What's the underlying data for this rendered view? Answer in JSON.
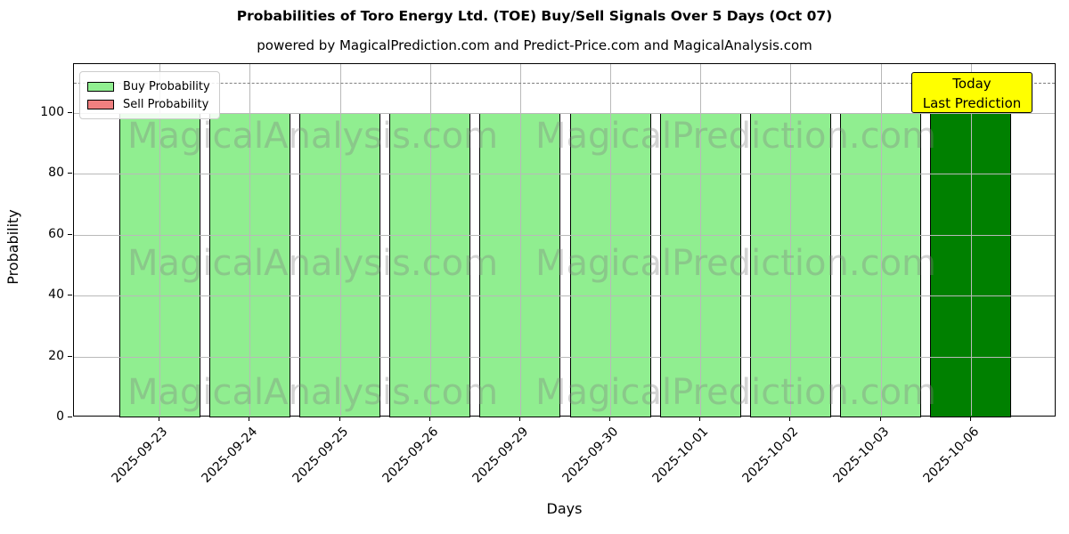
{
  "chart_data": {
    "type": "bar",
    "title": "Probabilities of Toro Energy Ltd. (TOE) Buy/Sell Signals Over 5 Days (Oct 07)",
    "subtitle": "powered by MagicalPrediction.com and Predict-Price.com and MagicalAnalysis.com",
    "xlabel": "Days",
    "ylabel": "Probability",
    "categories": [
      "2025-09-23",
      "2025-09-24",
      "2025-09-25",
      "2025-09-26",
      "2025-09-29",
      "2025-09-30",
      "2025-10-01",
      "2025-10-02",
      "2025-10-03",
      "2025-10-06"
    ],
    "series": [
      {
        "name": "Buy Probability",
        "color": "#90EE90",
        "values": [
          100,
          100,
          100,
          100,
          100,
          100,
          100,
          100,
          100,
          100
        ]
      },
      {
        "name": "Sell Probability",
        "color": "#F08080",
        "values": [
          0,
          0,
          0,
          0,
          0,
          0,
          0,
          0,
          0,
          0
        ]
      }
    ],
    "highlight_bar": {
      "index": 9,
      "color": "#008000"
    },
    "bar_edge_color": "#000000",
    "ylim": [
      0,
      116
    ],
    "yticks": [
      0,
      20,
      40,
      60,
      80,
      100
    ],
    "dashed_line_y": 110,
    "dashed_line_color": "#7f7f7f",
    "grid": true,
    "legend_position": "upper left",
    "annotation": {
      "lines": [
        "Today",
        "Last Prediction"
      ],
      "bg_color": "#FFFF00",
      "border_color": "#000000"
    },
    "watermarks": [
      "MagicalAnalysis.com",
      "MagicalPrediction.com"
    ],
    "watermark_color": "#808080"
  }
}
